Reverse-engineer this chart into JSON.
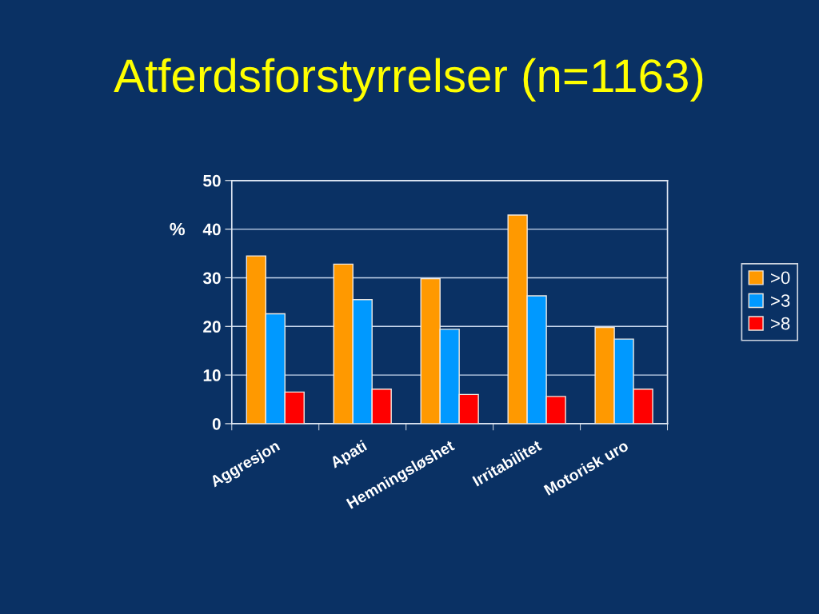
{
  "chart_data": {
    "type": "bar",
    "title": "Atferdsforstyrrelser (n=1163)",
    "ylabel": "%",
    "categories": [
      "Aggresjon",
      "Apati",
      "Hemningsløshet",
      "Irritabilitet",
      "Motorisk uro"
    ],
    "series": [
      {
        "name": ">0",
        "color": "#ff9900",
        "values": [
          34.5,
          32.8,
          29.8,
          42.9,
          19.8
        ]
      },
      {
        "name": ">3",
        "color": "#0099ff",
        "values": [
          22.6,
          25.5,
          19.4,
          26.3,
          17.4
        ]
      },
      {
        "name": ">8",
        "color": "#ff0000",
        "values": [
          6.5,
          7.1,
          6.0,
          5.6,
          7.1
        ]
      }
    ],
    "ylim": [
      0,
      50
    ],
    "yticks": [
      0,
      10,
      20,
      30,
      40,
      50
    ],
    "grid": "y",
    "legend": "right"
  }
}
